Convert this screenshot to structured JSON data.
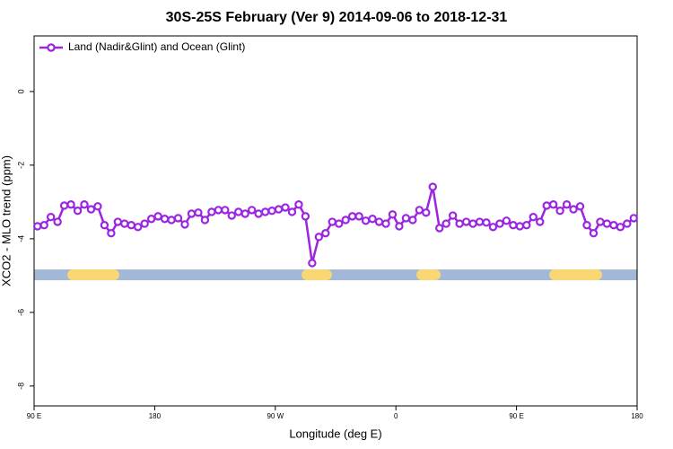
{
  "chart_data": {
    "type": "line",
    "title": "30S-25S February (Ver 9)   2014-09-06 to 2018-12-31",
    "x_label": "Longitude (deg E)",
    "y_label": "XCO2 - MLO trend (ppm)",
    "xlim": [
      90,
      540
    ],
    "xticks": [
      {
        "value": 90,
        "label": "90 E"
      },
      {
        "value": 180,
        "label": "180"
      },
      {
        "value": 270,
        "label": "90 W"
      },
      {
        "value": 360,
        "label": "0"
      },
      {
        "value": 450,
        "label": "90 E"
      },
      {
        "value": 540,
        "label": "180"
      }
    ],
    "ylim": [
      -8.54,
      1.51
    ],
    "yticks": [
      0,
      -2,
      -4,
      -6,
      -8
    ],
    "legend": "top-left",
    "band": {
      "y": -4.98,
      "color": "#a2b8d6",
      "land_color": "#f8d774",
      "land": [
        [
          114.8,
          153.6
        ],
        [
          289.6,
          312.3
        ],
        [
          375.3,
          393.4
        ],
        [
          474.4,
          513.9
        ]
      ]
    },
    "x": [
      92.5,
      97.5,
      102.5,
      107.5,
      112.5,
      117.5,
      122.5,
      127.5,
      132.5,
      137.5,
      142.5,
      147.5,
      152.5,
      157.5,
      162.5,
      167.5,
      172.5,
      177.5,
      182.5,
      187.5,
      192.5,
      197.5,
      202.5,
      207.5,
      212.5,
      217.5,
      222.5,
      227.5,
      232.5,
      237.5,
      242.5,
      247.5,
      252.5,
      257.5,
      262.5,
      267.5,
      272.5,
      277.5,
      282.5,
      287.5,
      292.5,
      297.5,
      302.5,
      307.5,
      312.5,
      317.5,
      322.5,
      327.5,
      332.5,
      337.5,
      342.5,
      347.5,
      352.5,
      357.5,
      362.5,
      367.5,
      372.5,
      377.5,
      382.5,
      387.5,
      392.5,
      397.5,
      402.5,
      407.5,
      412.5,
      417.5,
      422.5,
      427.5,
      432.5,
      437.5,
      442.5,
      447.5,
      452.5,
      457.5,
      462.5,
      467.5,
      472.5,
      477.5,
      482.5,
      487.5,
      492.5,
      497.5,
      502.5,
      507.5,
      512.5,
      517.5,
      522.5,
      527.5,
      532.5,
      537.5
    ],
    "series": [
      {
        "name": "Land (Nadir&Glint) and Ocean (Glint)",
        "color": "#9b25e0",
        "values": [
          -3.66,
          -3.63,
          -3.41,
          -3.54,
          -3.1,
          -3.07,
          -3.24,
          -3.07,
          -3.2,
          -3.12,
          -3.63,
          -3.85,
          -3.54,
          -3.59,
          -3.63,
          -3.68,
          -3.59,
          -3.46,
          -3.39,
          -3.46,
          -3.49,
          -3.44,
          -3.61,
          -3.32,
          -3.29,
          -3.49,
          -3.27,
          -3.22,
          -3.22,
          -3.37,
          -3.27,
          -3.32,
          -3.22,
          -3.32,
          -3.27,
          -3.24,
          -3.2,
          -3.15,
          -3.27,
          -3.07,
          -3.39,
          -4.66,
          -3.95,
          -3.85,
          -3.54,
          -3.59,
          -3.49,
          -3.39,
          -3.39,
          -3.51,
          -3.46,
          -3.54,
          -3.59,
          -3.34,
          -3.66,
          -3.44,
          -3.49,
          -3.22,
          -3.29,
          -2.59,
          -3.71,
          -3.59,
          -3.37,
          -3.59,
          -3.54,
          -3.59,
          -3.54,
          -3.56,
          -3.68,
          -3.59,
          -3.51,
          -3.63,
          -3.66,
          -3.63,
          -3.41,
          -3.54,
          -3.1,
          -3.07,
          -3.24,
          -3.07,
          -3.2,
          -3.12,
          -3.63,
          -3.85,
          -3.54,
          -3.59,
          -3.63,
          -3.68,
          -3.59,
          -3.44
        ]
      }
    ]
  }
}
